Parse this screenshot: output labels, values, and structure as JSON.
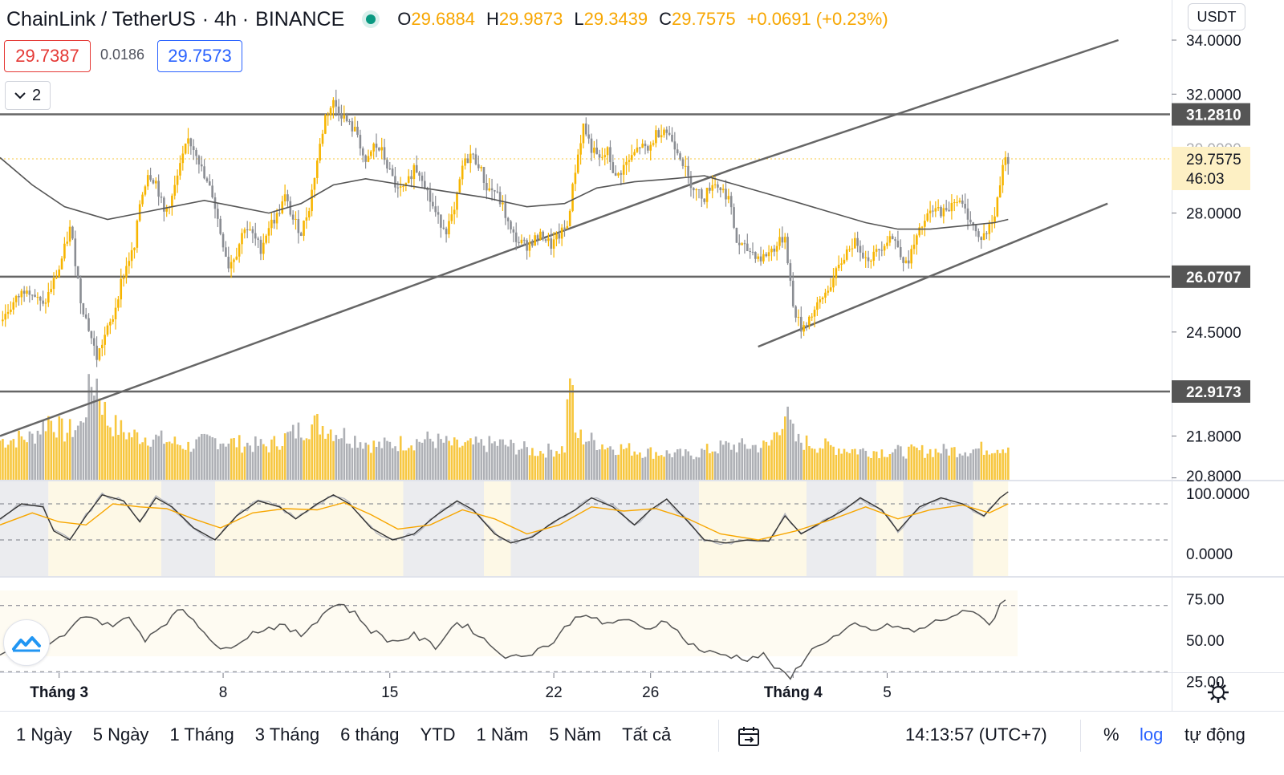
{
  "header": {
    "symbol": "ChainLink / TetherUS",
    "interval": "· 4h ·",
    "exchange": "BINANCE",
    "ohlc": {
      "o_label": "O",
      "o": "29.6884",
      "h_label": "H",
      "h": "29.9873",
      "l_label": "L",
      "l": "29.3439",
      "c_label": "C",
      "c": "29.7575",
      "change": "+0.0691 (+0.23%)"
    },
    "sell_price": "29.7387",
    "spread": "0.0186",
    "buy_price": "29.7573",
    "indicators_collapsed_count": "2",
    "currency": "USDT"
  },
  "chart_data": {
    "type": "candlestick",
    "colors": {
      "up": "#f7b500",
      "down": "#8a8d93",
      "line": "#555555",
      "accent": "#f7a600"
    },
    "y_scale": "log",
    "price_ticks": [
      "34.0000",
      "32.0000",
      "28.0000",
      "24.5000",
      "21.8000",
      "20.8000"
    ],
    "price_ticks_faint": [
      "30.0000"
    ],
    "price_labels": [
      {
        "value": 31.281,
        "text": "31.2810"
      },
      {
        "value": 26.0707,
        "text": "26.0707"
      },
      {
        "value": 22.9173,
        "text": "22.9173"
      }
    ],
    "last_price": {
      "value": 29.7575,
      "text": "29.7575",
      "countdown": "46:03"
    },
    "horizontal_lines": [
      31.281,
      26.0707,
      22.9173
    ],
    "close_path": [
      [
        0,
        24.8
      ],
      [
        10,
        25.8
      ],
      [
        16,
        25.2
      ],
      [
        22,
        26.3
      ],
      [
        26,
        27.5
      ],
      [
        27,
        27.1
      ],
      [
        30,
        25.4
      ],
      [
        33,
        24.6
      ],
      [
        36,
        23.8
      ],
      [
        39,
        24.4
      ],
      [
        42,
        24.9
      ],
      [
        45,
        25.9
      ],
      [
        48,
        26.6
      ],
      [
        50,
        26.9
      ],
      [
        52,
        28.3
      ],
      [
        55,
        29.3
      ],
      [
        58,
        29.0
      ],
      [
        61,
        28.0
      ],
      [
        64,
        28.5
      ],
      [
        68,
        29.8
      ],
      [
        70,
        30.4
      ],
      [
        73,
        30.0
      ],
      [
        76,
        29.1
      ],
      [
        79,
        28.6
      ],
      [
        82,
        27.4
      ],
      [
        85,
        26.4
      ],
      [
        88,
        26.8
      ],
      [
        91,
        27.6
      ],
      [
        94,
        27.3
      ],
      [
        97,
        26.9
      ],
      [
        100,
        27.6
      ],
      [
        103,
        27.9
      ],
      [
        106,
        28.5
      ],
      [
        109,
        27.8
      ],
      [
        112,
        27.4
      ],
      [
        115,
        28.2
      ],
      [
        118,
        29.7
      ],
      [
        121,
        31.2
      ],
      [
        124,
        31.7
      ],
      [
        127,
        31.3
      ],
      [
        130,
        30.9
      ],
      [
        133,
        30.6
      ],
      [
        136,
        29.5
      ],
      [
        139,
        30.2
      ],
      [
        142,
        30.0
      ],
      [
        145,
        29.3
      ],
      [
        148,
        28.7
      ],
      [
        151,
        28.8
      ],
      [
        154,
        29.5
      ],
      [
        157,
        29.2
      ],
      [
        160,
        28.4
      ],
      [
        163,
        27.8
      ],
      [
        166,
        27.5
      ],
      [
        169,
        28.0
      ],
      [
        172,
        29.5
      ],
      [
        175,
        29.9
      ],
      [
        178,
        29.6
      ],
      [
        181,
        28.8
      ],
      [
        184,
        28.7
      ],
      [
        187,
        28.2
      ],
      [
        190,
        27.4
      ],
      [
        193,
        27.1
      ],
      [
        196,
        27.0
      ],
      [
        199,
        27.2
      ],
      [
        202,
        27.3
      ],
      [
        205,
        27.0
      ],
      [
        208,
        27.3
      ],
      [
        211,
        27.6
      ],
      [
        214,
        29.4
      ],
      [
        217,
        30.9
      ],
      [
        220,
        30.1
      ],
      [
        223,
        29.7
      ],
      [
        226,
        30.0
      ],
      [
        229,
        29.1
      ],
      [
        232,
        29.5
      ],
      [
        235,
        29.8
      ],
      [
        238,
        30.2
      ],
      [
        241,
        30.0
      ],
      [
        244,
        30.6
      ],
      [
        247,
        30.8
      ],
      [
        250,
        30.4
      ],
      [
        253,
        29.9
      ],
      [
        256,
        29.1
      ],
      [
        259,
        28.7
      ],
      [
        262,
        28.5
      ],
      [
        265,
        29.0
      ],
      [
        268,
        28.8
      ],
      [
        271,
        28.5
      ],
      [
        274,
        27.1
      ],
      [
        277,
        26.9
      ],
      [
        280,
        26.8
      ],
      [
        283,
        26.6
      ],
      [
        286,
        26.8
      ],
      [
        289,
        27.0
      ],
      [
        292,
        27.3
      ],
      [
        295,
        25.2
      ],
      [
        298,
        24.6
      ],
      [
        301,
        24.9
      ],
      [
        304,
        25.2
      ],
      [
        307,
        25.6
      ],
      [
        310,
        26.0
      ],
      [
        313,
        26.5
      ],
      [
        316,
        27.0
      ],
      [
        319,
        27.1
      ],
      [
        322,
        26.6
      ],
      [
        325,
        26.7
      ],
      [
        328,
        27.0
      ],
      [
        331,
        27.3
      ],
      [
        334,
        27.0
      ],
      [
        337,
        26.4
      ],
      [
        340,
        27.0
      ],
      [
        343,
        27.6
      ],
      [
        346,
        28.0
      ],
      [
        349,
        28.1
      ],
      [
        352,
        28.0
      ],
      [
        355,
        28.5
      ],
      [
        358,
        28.2
      ],
      [
        361,
        27.8
      ],
      [
        364,
        27.2
      ],
      [
        367,
        27.4
      ],
      [
        370,
        27.9
      ],
      [
        373,
        29.6
      ],
      [
        375,
        29.76
      ]
    ],
    "sma_path": [
      [
        0,
        29.8
      ],
      [
        12,
        28.9
      ],
      [
        24,
        28.2
      ],
      [
        40,
        27.8
      ],
      [
        52,
        28.0
      ],
      [
        64,
        28.2
      ],
      [
        76,
        28.4
      ],
      [
        88,
        28.2
      ],
      [
        100,
        28.0
      ],
      [
        112,
        28.3
      ],
      [
        124,
        28.9
      ],
      [
        136,
        29.1
      ],
      [
        150,
        28.9
      ],
      [
        165,
        28.7
      ],
      [
        180,
        28.5
      ],
      [
        196,
        28.2
      ],
      [
        210,
        28.3
      ],
      [
        222,
        28.8
      ],
      [
        236,
        29.0
      ],
      [
        250,
        29.1
      ],
      [
        262,
        29.2
      ],
      [
        274,
        28.9
      ],
      [
        286,
        28.6
      ],
      [
        298,
        28.3
      ],
      [
        310,
        28.0
      ],
      [
        322,
        27.7
      ],
      [
        334,
        27.5
      ],
      [
        346,
        27.5
      ],
      [
        358,
        27.6
      ],
      [
        370,
        27.7
      ],
      [
        375,
        27.8
      ]
    ],
    "trend_lines": [
      {
        "from": [
          0,
          21.8
        ],
        "to": [
          272,
          29.4
        ]
      },
      {
        "from": [
          272,
          29.4
        ],
        "to": [
          416,
          34.0
        ]
      },
      {
        "from": [
          282,
          24.1
        ],
        "to": [
          412,
          28.3
        ]
      }
    ],
    "volume_profile": [
      [
        0,
        0.35
      ],
      [
        12,
        0.38
      ],
      [
        18,
        0.55
      ],
      [
        24,
        0.42
      ],
      [
        30,
        0.48
      ],
      [
        34,
        0.85
      ],
      [
        36,
        0.88
      ],
      [
        40,
        0.52
      ],
      [
        48,
        0.4
      ],
      [
        56,
        0.38
      ],
      [
        70,
        0.3
      ],
      [
        80,
        0.36
      ],
      [
        90,
        0.32
      ],
      [
        100,
        0.3
      ],
      [
        112,
        0.45
      ],
      [
        118,
        0.5
      ],
      [
        126,
        0.42
      ],
      [
        140,
        0.3
      ],
      [
        150,
        0.33
      ],
      [
        160,
        0.36
      ],
      [
        170,
        0.3
      ],
      [
        186,
        0.32
      ],
      [
        200,
        0.25
      ],
      [
        210,
        0.28
      ],
      [
        212,
        1.0
      ],
      [
        214,
        0.4
      ],
      [
        226,
        0.3
      ],
      [
        240,
        0.25
      ],
      [
        256,
        0.22
      ],
      [
        270,
        0.3
      ],
      [
        286,
        0.3
      ],
      [
        292,
        0.6
      ],
      [
        296,
        0.35
      ],
      [
        306,
        0.3
      ],
      [
        320,
        0.26
      ],
      [
        336,
        0.25
      ],
      [
        350,
        0.26
      ],
      [
        362,
        0.27
      ],
      [
        375,
        0.3
      ]
    ],
    "stoch_ticks": [
      "100.0000",
      "0.0000"
    ],
    "stoch_k": [
      [
        0,
        55
      ],
      [
        8,
        80
      ],
      [
        16,
        75
      ],
      [
        20,
        35
      ],
      [
        26,
        20
      ],
      [
        32,
        60
      ],
      [
        38,
        95
      ],
      [
        46,
        85
      ],
      [
        52,
        50
      ],
      [
        58,
        90
      ],
      [
        64,
        75
      ],
      [
        72,
        40
      ],
      [
        80,
        20
      ],
      [
        88,
        60
      ],
      [
        96,
        85
      ],
      [
        104,
        75
      ],
      [
        110,
        55
      ],
      [
        118,
        80
      ],
      [
        124,
        95
      ],
      [
        130,
        80
      ],
      [
        138,
        40
      ],
      [
        146,
        20
      ],
      [
        154,
        30
      ],
      [
        162,
        60
      ],
      [
        170,
        85
      ],
      [
        176,
        70
      ],
      [
        184,
        30
      ],
      [
        190,
        15
      ],
      [
        198,
        25
      ],
      [
        206,
        50
      ],
      [
        214,
        70
      ],
      [
        220,
        90
      ],
      [
        228,
        75
      ],
      [
        236,
        45
      ],
      [
        242,
        70
      ],
      [
        248,
        88
      ],
      [
        256,
        50
      ],
      [
        262,
        20
      ],
      [
        270,
        15
      ],
      [
        278,
        20
      ],
      [
        286,
        18
      ],
      [
        292,
        60
      ],
      [
        298,
        30
      ],
      [
        306,
        50
      ],
      [
        314,
        70
      ],
      [
        320,
        90
      ],
      [
        328,
        70
      ],
      [
        334,
        35
      ],
      [
        342,
        75
      ],
      [
        350,
        90
      ],
      [
        358,
        80
      ],
      [
        366,
        60
      ],
      [
        372,
        90
      ],
      [
        375,
        100
      ]
    ],
    "stoch_d": [
      [
        0,
        45
      ],
      [
        12,
        65
      ],
      [
        22,
        50
      ],
      [
        32,
        45
      ],
      [
        42,
        80
      ],
      [
        52,
        75
      ],
      [
        62,
        72
      ],
      [
        72,
        55
      ],
      [
        82,
        40
      ],
      [
        94,
        65
      ],
      [
        106,
        72
      ],
      [
        118,
        70
      ],
      [
        128,
        82
      ],
      [
        138,
        62
      ],
      [
        148,
        38
      ],
      [
        160,
        45
      ],
      [
        172,
        70
      ],
      [
        184,
        55
      ],
      [
        196,
        30
      ],
      [
        208,
        45
      ],
      [
        220,
        75
      ],
      [
        232,
        68
      ],
      [
        244,
        72
      ],
      [
        256,
        55
      ],
      [
        268,
        30
      ],
      [
        282,
        20
      ],
      [
        296,
        35
      ],
      [
        310,
        55
      ],
      [
        322,
        75
      ],
      [
        334,
        55
      ],
      [
        346,
        70
      ],
      [
        358,
        78
      ],
      [
        368,
        65
      ],
      [
        375,
        80
      ]
    ],
    "rsi_ticks": [
      "75.00",
      "50.00",
      "25.00"
    ],
    "rsi": [
      [
        0,
        40
      ],
      [
        6,
        50
      ],
      [
        12,
        38
      ],
      [
        18,
        45
      ],
      [
        26,
        55
      ],
      [
        32,
        65
      ],
      [
        40,
        58
      ],
      [
        48,
        62
      ],
      [
        54,
        50
      ],
      [
        60,
        58
      ],
      [
        68,
        68
      ],
      [
        76,
        55
      ],
      [
        82,
        42
      ],
      [
        88,
        48
      ],
      [
        96,
        55
      ],
      [
        104,
        58
      ],
      [
        112,
        52
      ],
      [
        120,
        65
      ],
      [
        126,
        72
      ],
      [
        132,
        65
      ],
      [
        138,
        55
      ],
      [
        146,
        48
      ],
      [
        154,
        52
      ],
      [
        162,
        45
      ],
      [
        170,
        60
      ],
      [
        176,
        55
      ],
      [
        184,
        44
      ],
      [
        190,
        38
      ],
      [
        198,
        42
      ],
      [
        206,
        48
      ],
      [
        212,
        60
      ],
      [
        218,
        66
      ],
      [
        224,
        58
      ],
      [
        232,
        62
      ],
      [
        240,
        55
      ],
      [
        248,
        62
      ],
      [
        254,
        50
      ],
      [
        262,
        42
      ],
      [
        270,
        40
      ],
      [
        278,
        38
      ],
      [
        284,
        40
      ],
      [
        290,
        30
      ],
      [
        294,
        26
      ],
      [
        300,
        40
      ],
      [
        306,
        48
      ],
      [
        312,
        52
      ],
      [
        318,
        58
      ],
      [
        324,
        55
      ],
      [
        332,
        58
      ],
      [
        340,
        54
      ],
      [
        348,
        60
      ],
      [
        356,
        65
      ],
      [
        364,
        66
      ],
      [
        368,
        58
      ],
      [
        372,
        70
      ],
      [
        375,
        74
      ]
    ],
    "x_ticks": [
      {
        "index": 22,
        "label": "Tháng 3",
        "bold": true
      },
      {
        "index": 83,
        "label": "8",
        "bold": false
      },
      {
        "index": 145,
        "label": "15",
        "bold": false
      },
      {
        "index": 206,
        "label": "22",
        "bold": false
      },
      {
        "index": 242,
        "label": "26",
        "bold": false
      },
      {
        "index": 295,
        "label": "Tháng 4",
        "bold": true
      },
      {
        "index": 330,
        "label": "5",
        "bold": false
      }
    ]
  },
  "bottom_bar": {
    "ranges": [
      "1 Ngày",
      "5 Ngày",
      "1 Tháng",
      "3 Tháng",
      "6 tháng",
      "YTD",
      "1 Năm",
      "5 Năm",
      "Tất cả"
    ],
    "time": "14:13:57 (UTC+7)",
    "percent": "%",
    "log": "log",
    "auto": "tự động"
  }
}
